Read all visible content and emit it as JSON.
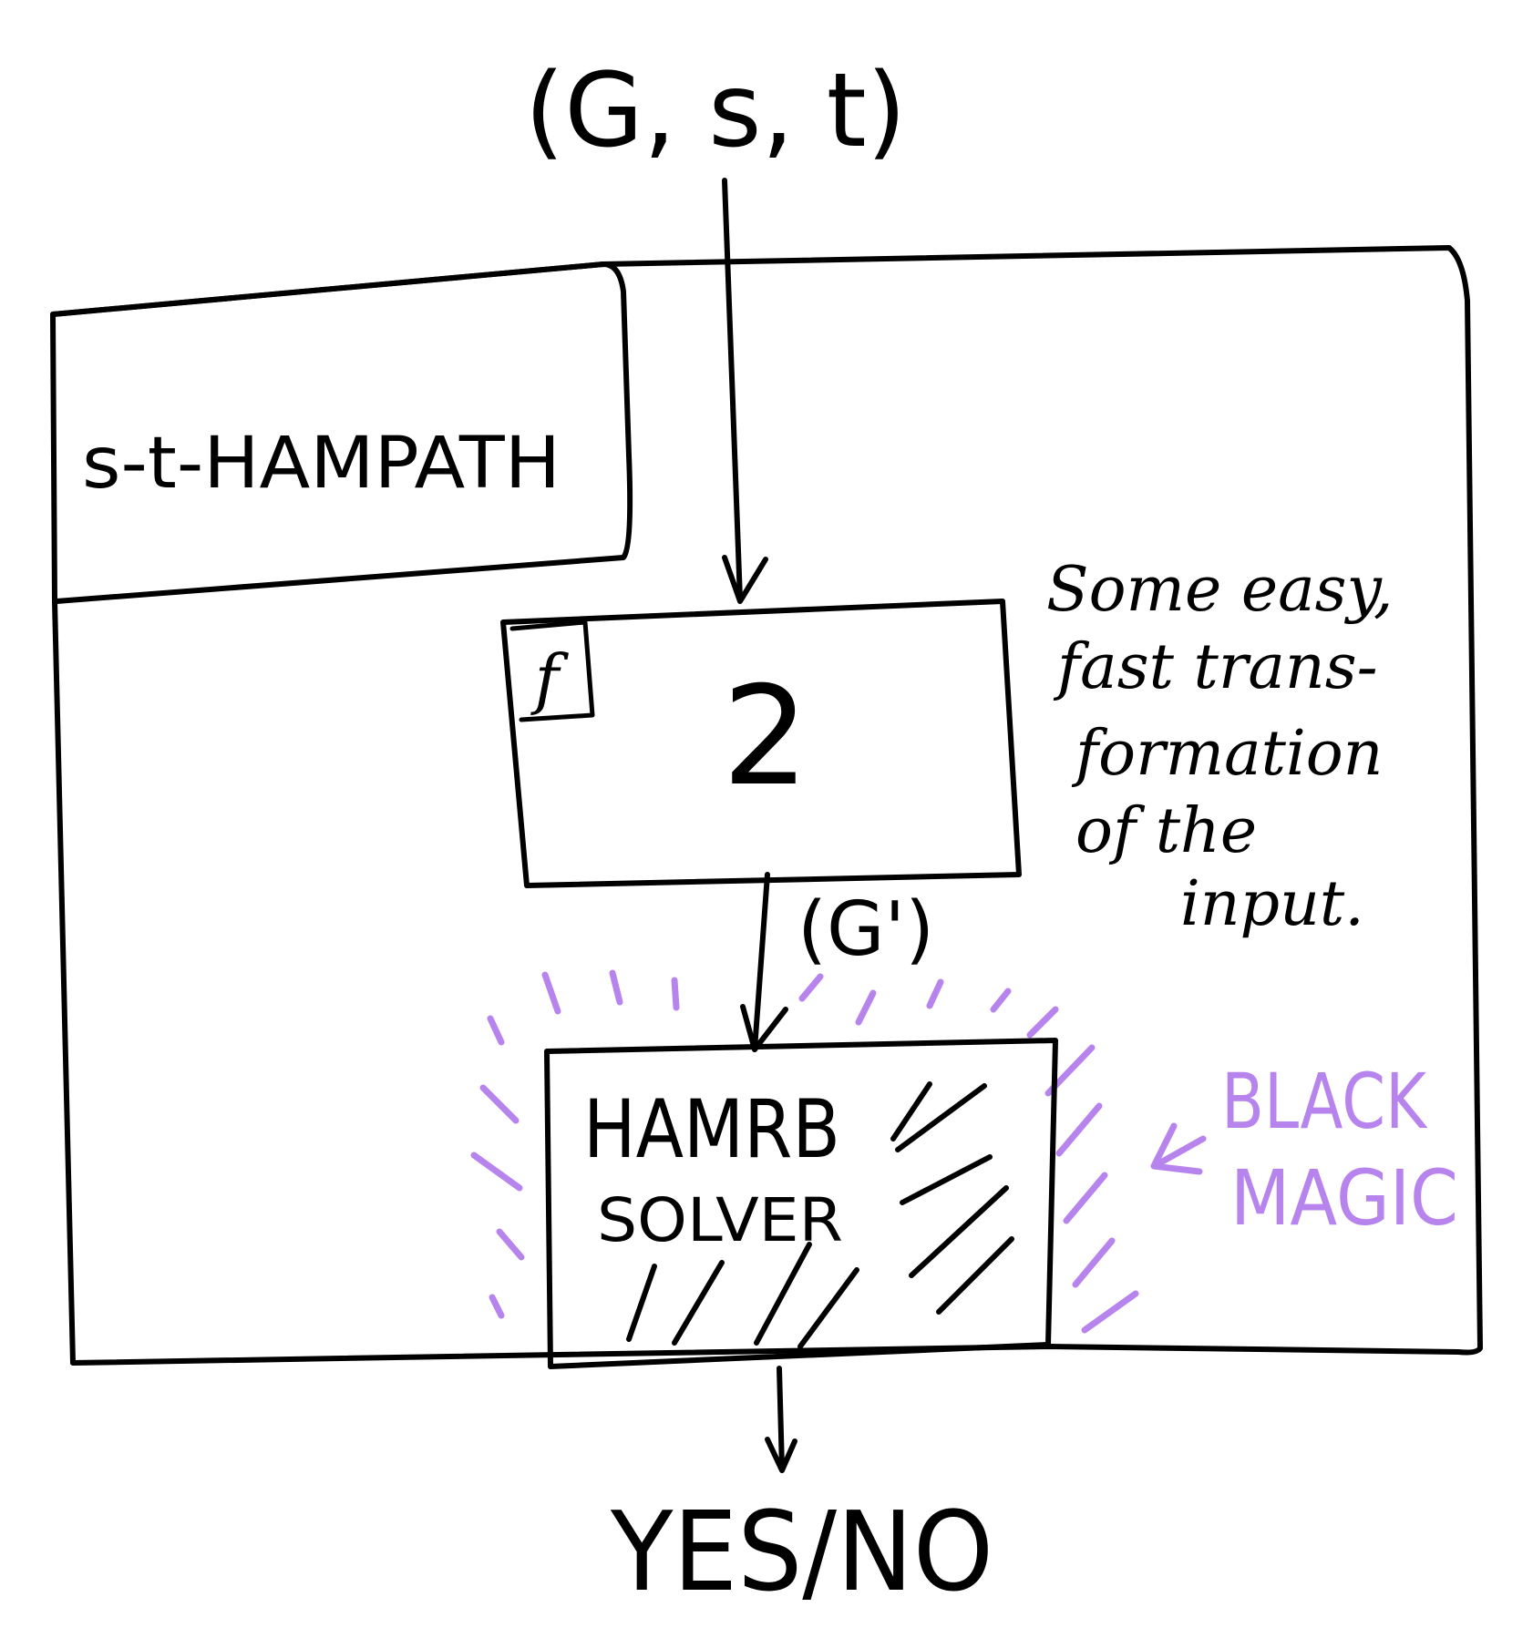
{
  "input_label": "(G, s, t)",
  "outer_box_label": "s-t-HAMPATH",
  "transform_box": {
    "corner_label": "f",
    "center_symbol": "2"
  },
  "intermediate_label": "(G')",
  "note_lines": [
    "Some easy,",
    "fast trans-",
    "formation",
    "of the",
    "input."
  ],
  "solver_box": {
    "line1": "HAMRB",
    "line2": "SOLVER"
  },
  "magic_label_lines": [
    "BLACK",
    "MAGIC"
  ],
  "output_label": "YES/NO",
  "colors": {
    "ink": "#000000",
    "magic": "#b784ee",
    "background": "#ffffff"
  }
}
